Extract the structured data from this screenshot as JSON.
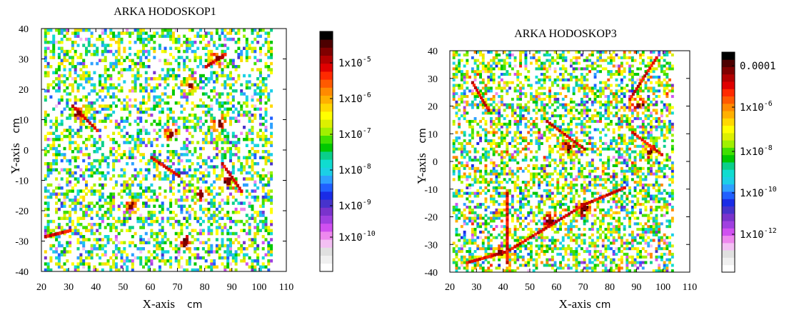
{
  "chart_data": [
    {
      "type": "heatmap",
      "title": "ARKA HODOSKOP1",
      "xlabel": "X-axis",
      "xunit": "cm",
      "ylabel": "Y-axis",
      "yunit": "cm",
      "xlim": [
        20,
        110
      ],
      "ylim": [
        -40,
        40
      ],
      "x_ticks": [
        "20",
        "30",
        "40",
        "50",
        "60",
        "70",
        "80",
        "90",
        "100",
        "110"
      ],
      "y_ticks": [
        "40",
        "30",
        "20",
        "10",
        "0",
        "-10",
        "-20",
        "-30",
        "-40"
      ],
      "colorbar": {
        "scale": "log",
        "range": [
          1e-11,
          0.0001
        ],
        "ticks": [
          {
            "base": "1x10",
            "exp": "-5"
          },
          {
            "base": "1x10",
            "exp": "-6"
          },
          {
            "base": "1x10",
            "exp": "-7"
          },
          {
            "base": "1x10",
            "exp": "-8"
          },
          {
            "base": "1x10",
            "exp": "-9"
          },
          {
            "base": "1x10",
            "exp": "-10"
          }
        ]
      },
      "cell_size_cm": 1,
      "occupancy": 0.42,
      "hotspots": [
        {
          "x": 52,
          "y": -19
        },
        {
          "x": 84,
          "y": 30
        },
        {
          "x": 74,
          "y": 21
        },
        {
          "x": 78,
          "y": -15
        },
        {
          "x": 85,
          "y": 8
        },
        {
          "x": 33,
          "y": 12
        },
        {
          "x": 67,
          "y": 5
        },
        {
          "x": 88,
          "y": -11
        },
        {
          "x": 72,
          "y": -31
        }
      ],
      "tracks": [
        {
          "from": [
            21,
            -29
          ],
          "to": [
            30,
            -27
          ]
        },
        {
          "from": [
            31,
            14
          ],
          "to": [
            40,
            6
          ]
        },
        {
          "from": [
            80,
            27
          ],
          "to": [
            87,
            31
          ]
        },
        {
          "from": [
            86,
            -5
          ],
          "to": [
            93,
            -14
          ]
        },
        {
          "from": [
            60,
            -3
          ],
          "to": [
            70,
            -9
          ]
        }
      ]
    },
    {
      "type": "heatmap",
      "title": "ARKA HODOSKOP3",
      "xlabel": "X-axis",
      "xunit": "cm",
      "ylabel": "Y-axis",
      "yunit": "cm",
      "xlim": [
        20,
        110
      ],
      "ylim": [
        -40,
        40
      ],
      "x_ticks": [
        "20",
        "30",
        "40",
        "50",
        "60",
        "70",
        "80",
        "90",
        "100",
        "110"
      ],
      "y_ticks": [
        "40",
        "30",
        "20",
        "10",
        "0",
        "-10",
        "-20",
        "-30",
        "-40"
      ],
      "colorbar": {
        "scale": "log",
        "range": [
          1e-13,
          0.0003
        ],
        "ticks": [
          {
            "base": "0.0001",
            "exp": ""
          },
          {
            "base": "1x10",
            "exp": "-6"
          },
          {
            "base": "1x10",
            "exp": "-8"
          },
          {
            "base": "1x10",
            "exp": "-10"
          },
          {
            "base": "1x10",
            "exp": "-12"
          }
        ]
      },
      "cell_size_cm": 1,
      "occupancy": 0.5,
      "hotspots": [
        {
          "x": 94,
          "y": 3
        },
        {
          "x": 70,
          "y": -17
        },
        {
          "x": 38,
          "y": -33
        },
        {
          "x": 64,
          "y": 5
        },
        {
          "x": 90,
          "y": 20
        },
        {
          "x": 57,
          "y": -22
        }
      ],
      "tracks": [
        {
          "from": [
            41,
            -12
          ],
          "to": [
            41,
            -37
          ]
        },
        {
          "from": [
            26,
            -37
          ],
          "to": [
            41,
            -33
          ]
        },
        {
          "from": [
            41,
            -33
          ],
          "to": [
            70,
            -16
          ]
        },
        {
          "from": [
            70,
            -16
          ],
          "to": [
            85,
            -10
          ]
        },
        {
          "from": [
            87,
            22
          ],
          "to": [
            97,
            37
          ]
        },
        {
          "from": [
            28,
            28
          ],
          "to": [
            34,
            18
          ]
        },
        {
          "from": [
            56,
            14
          ],
          "to": [
            70,
            4
          ]
        },
        {
          "from": [
            88,
            10
          ],
          "to": [
            99,
            2
          ]
        }
      ]
    }
  ]
}
